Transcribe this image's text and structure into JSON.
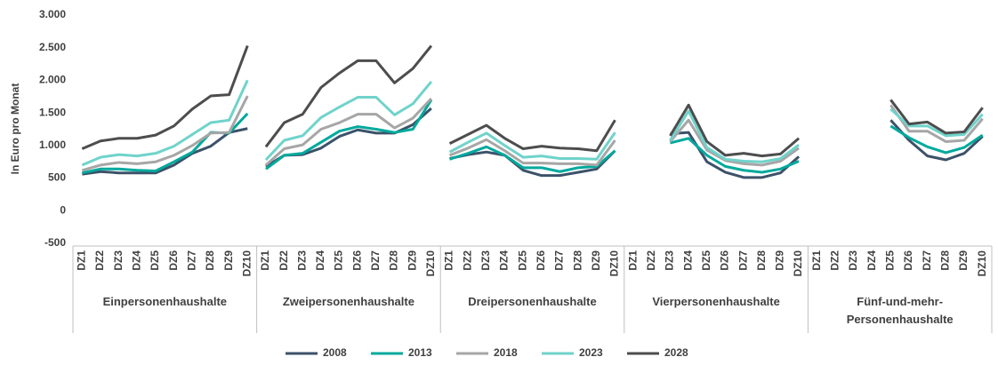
{
  "chart_data": {
    "type": "line",
    "y_axis_label": "In Euro pro Monat",
    "groups": [
      "Einpersonenhaushalte",
      "Zweipersonenhaushalte",
      "Dreipersonenhaushalte",
      "Vierpersonenhaushalte",
      "Fünf-und-mehr-Personenhaushalte"
    ],
    "categories": [
      "DZ1",
      "DZ2",
      "DZ3",
      "DZ4",
      "DZ5",
      "DZ6",
      "DZ7",
      "DZ8",
      "DZ9",
      "DZ10",
      "DZ1",
      "DZ2",
      "DZ3",
      "DZ4",
      "DZ5",
      "DZ6",
      "DZ7",
      "DZ8",
      "DZ9",
      "DZ10",
      "DZ1",
      "DZ2",
      "DZ3",
      "DZ4",
      "DZ5",
      "DZ6",
      "DZ7",
      "DZ8",
      "DZ9",
      "DZ10",
      "DZ1",
      "DZ2",
      "DZ3",
      "DZ4",
      "DZ5",
      "DZ6",
      "DZ7",
      "DZ8",
      "DZ9",
      "DZ10",
      "DZ1",
      "DZ2",
      "DZ3",
      "DZ4",
      "DZ5",
      "DZ6",
      "DZ7",
      "DZ8",
      "DZ9",
      "DZ10"
    ],
    "series": [
      {
        "name": "2008",
        "color": "#3b5269",
        "values": [
          560,
          600,
          580,
          580,
          580,
          700,
          880,
          990,
          1200,
          1260,
          680,
          850,
          860,
          960,
          1140,
          1240,
          1190,
          1190,
          1320,
          1570,
          800,
          860,
          900,
          850,
          620,
          540,
          540,
          590,
          640,
          920,
          null,
          null,
          1180,
          1200,
          750,
          590,
          510,
          510,
          580,
          830,
          null,
          null,
          null,
          null,
          1390,
          1080,
          840,
          780,
          880,
          1140
        ]
      },
      {
        "name": "2013",
        "color": "#00a99d",
        "values": [
          580,
          640,
          640,
          620,
          610,
          750,
          900,
          1200,
          1190,
          1490,
          640,
          850,
          880,
          1050,
          1220,
          1290,
          1250,
          1200,
          1250,
          1700,
          790,
          880,
          980,
          850,
          660,
          660,
          600,
          660,
          680,
          920,
          null,
          null,
          1040,
          1110,
          850,
          680,
          620,
          590,
          640,
          760,
          null,
          null,
          null,
          null,
          1300,
          1120,
          980,
          890,
          970,
          1160
        ]
      },
      {
        "name": "2018",
        "color": "#a6a6a6",
        "values": [
          620,
          700,
          740,
          720,
          750,
          850,
          1000,
          1190,
          1200,
          1760,
          700,
          950,
          1010,
          1250,
          1350,
          1480,
          1480,
          1270,
          1420,
          1720,
          850,
          960,
          1090,
          920,
          730,
          730,
          720,
          720,
          700,
          1080,
          null,
          null,
          1060,
          1390,
          930,
          770,
          720,
          700,
          760,
          960,
          null,
          null,
          null,
          null,
          1620,
          1220,
          1220,
          1060,
          1080,
          1410
        ]
      },
      {
        "name": "2023",
        "color": "#6fd3cb",
        "values": [
          700,
          820,
          860,
          840,
          880,
          990,
          1170,
          1350,
          1390,
          2000,
          780,
          1080,
          1150,
          1430,
          1590,
          1740,
          1740,
          1470,
          1640,
          1980,
          900,
          1050,
          1190,
          1000,
          820,
          840,
          800,
          800,
          790,
          1200,
          null,
          null,
          1080,
          1530,
          970,
          790,
          760,
          750,
          800,
          1010,
          null,
          null,
          null,
          null,
          1560,
          1300,
          1300,
          1150,
          1170,
          1480
        ]
      },
      {
        "name": "2028",
        "color": "#4d4d4d",
        "values": [
          950,
          1070,
          1110,
          1110,
          1160,
          1300,
          1560,
          1760,
          1780,
          2530,
          980,
          1350,
          1480,
          1890,
          2110,
          2300,
          2300,
          1960,
          2180,
          2530,
          1030,
          1170,
          1310,
          1110,
          950,
          990,
          960,
          950,
          920,
          1390,
          null,
          null,
          1150,
          1620,
          1060,
          850,
          880,
          840,
          870,
          1110,
          null,
          null,
          null,
          null,
          1700,
          1330,
          1360,
          1190,
          1210,
          1580
        ]
      }
    ],
    "ylim": [
      -500,
      3000
    ],
    "yticks": [
      {
        "value": 3000,
        "label": "3.000"
      },
      {
        "value": 2500,
        "label": "2.500"
      },
      {
        "value": 2000,
        "label": "2.000"
      },
      {
        "value": 1500,
        "label": "1.500"
      },
      {
        "value": 1000,
        "label": "1.000"
      },
      500,
      0,
      -500
    ],
    "grid": false,
    "legend": "bottom"
  }
}
